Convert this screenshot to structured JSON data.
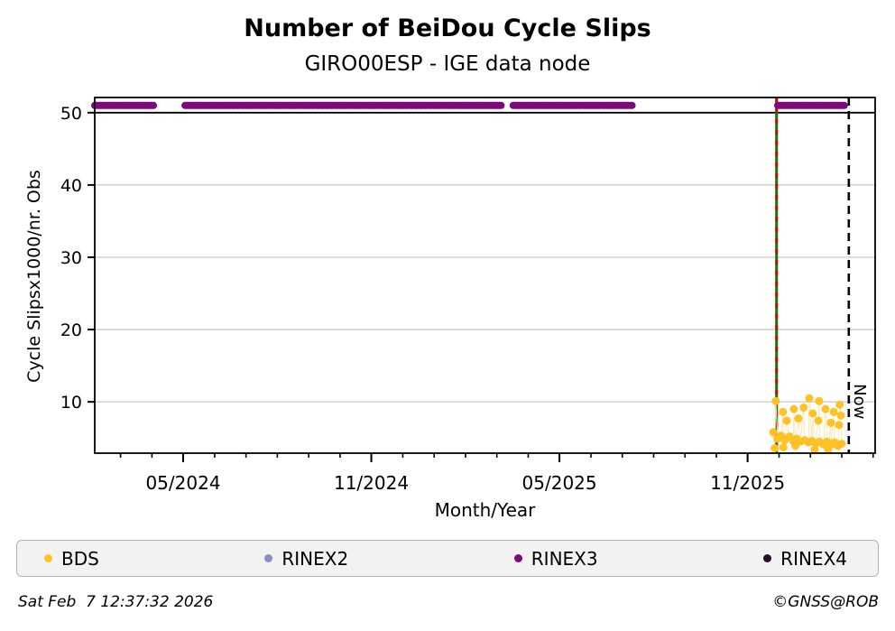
{
  "title": "Number of BeiDou Cycle Slips",
  "subtitle": "GIRO00ESP - IGE data node",
  "footer": {
    "timestamp": "Sat Feb  7 12:37:32 2026",
    "copyright": "©GNSS@ROB"
  },
  "chart_data": {
    "type": "scatter",
    "title": "Number of BeiDou Cycle Slips",
    "subtitle": "GIRO00ESP - IGE data node",
    "xlabel": "Month/Year",
    "ylabel": "Cycle Slipsx1000/nr. Obs",
    "xlim": [
      2024.098,
      2026.172
    ],
    "ylim": [
      2.9,
      52.1
    ],
    "x_major_ticks": [
      {
        "t": 2024.333,
        "label": "05/2024"
      },
      {
        "t": 2024.833,
        "label": "11/2024"
      },
      {
        "t": 2025.333,
        "label": "05/2025"
      },
      {
        "t": 2025.833,
        "label": "11/2025"
      }
    ],
    "x_minor_tick_interval_months": 1,
    "y_ticks": [
      10,
      20,
      30,
      40,
      50
    ],
    "grid_color": "#c8c8c8",
    "hline_black_y": 50,
    "series": [
      {
        "name": "BDS",
        "color": "#FFC125",
        "line_color": "#FFE9B3",
        "points": [
          [
            2025.901,
            5.8
          ],
          [
            2025.905,
            3.6
          ],
          [
            2025.908,
            10.1
          ],
          [
            2025.913,
            4.9
          ],
          [
            2025.922,
            5.3
          ],
          [
            2025.927,
            8.6
          ],
          [
            2025.928,
            3.7
          ],
          [
            2025.932,
            4.7
          ],
          [
            2025.937,
            7.4
          ],
          [
            2025.944,
            5.2
          ],
          [
            2025.954,
            4.6
          ],
          [
            2025.956,
            9.0
          ],
          [
            2025.96,
            3.9
          ],
          [
            2025.963,
            4.9
          ],
          [
            2025.968,
            7.7
          ],
          [
            2025.973,
            4.5
          ],
          [
            2025.982,
            9.2
          ],
          [
            2025.985,
            4.7
          ],
          [
            2025.995,
            4.4
          ],
          [
            2025.997,
            10.5
          ],
          [
            2026.004,
            4.6
          ],
          [
            2026.006,
            8.4
          ],
          [
            2026.011,
            3.4
          ],
          [
            2026.014,
            4.2
          ],
          [
            2026.021,
            7.4
          ],
          [
            2026.023,
            10.1
          ],
          [
            2026.024,
            4.5
          ],
          [
            2026.035,
            4.1
          ],
          [
            2026.04,
            9.0
          ],
          [
            2026.044,
            4.5
          ],
          [
            2026.047,
            3.4
          ],
          [
            2026.054,
            7.1
          ],
          [
            2026.055,
            4.1
          ],
          [
            2026.062,
            8.6
          ],
          [
            2026.064,
            4.4
          ],
          [
            2026.073,
            3.9
          ],
          [
            2026.076,
            6.8
          ],
          [
            2026.078,
            9.6
          ],
          [
            2026.081,
            8.1
          ],
          [
            2026.083,
            4.2
          ]
        ]
      },
      {
        "name": "RINEX2",
        "color": "#8A8ACB",
        "points": []
      },
      {
        "name": "RINEX3",
        "color": "#7D0A7D",
        "band_value": 51,
        "segments": [
          [
            2024.098,
            2024.254
          ],
          [
            2024.338,
            2025.178
          ],
          [
            2025.21,
            2025.526
          ],
          [
            2025.913,
            2026.09
          ]
        ]
      },
      {
        "name": "RINEX4",
        "color": "#2B0E2E",
        "points": []
      }
    ],
    "vlines": [
      {
        "t": 2025.91,
        "color": "#008000",
        "style": "solid",
        "overlay_color": "#DD0000",
        "overlay_style": "dashed",
        "label": ""
      },
      {
        "t": 2026.102,
        "color": "#000000",
        "style": "dashed",
        "label": "Now"
      }
    ],
    "legend_position": "bottom"
  }
}
